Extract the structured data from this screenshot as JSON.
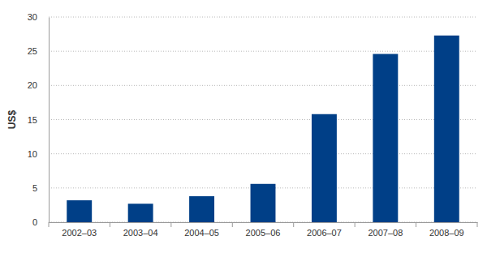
{
  "chart_data": {
    "type": "bar",
    "y_label": "US$",
    "categories": [
      "2002–03",
      "2003–04",
      "2004–05",
      "2005–06",
      "2006–07",
      "2007–08",
      "2008–09"
    ],
    "values": [
      3.2,
      2.7,
      3.8,
      5.6,
      15.8,
      24.6,
      27.3
    ],
    "color": "#003f87",
    "ylim": [
      0,
      30
    ],
    "yticks": [
      0,
      5,
      10,
      15,
      20,
      25,
      30
    ],
    "grid": true
  }
}
